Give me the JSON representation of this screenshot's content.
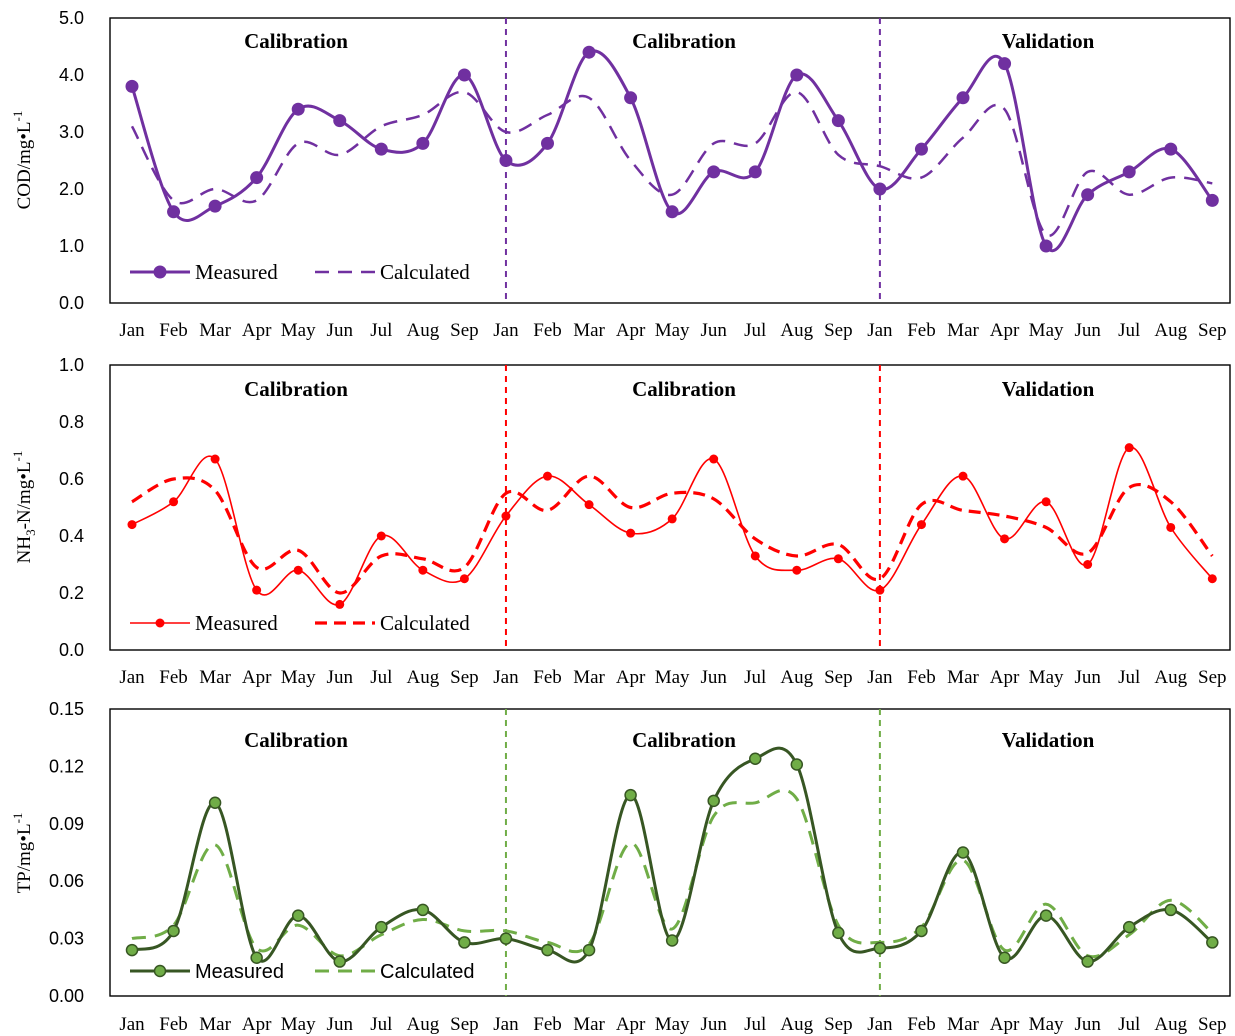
{
  "chart_data": [
    {
      "type": "line",
      "ylabel": "COD/mg•L-1",
      "ylabel_main": "COD/mg•L",
      "ylabel_sup": "-1",
      "ylim": [
        0,
        5
      ],
      "yticks": [
        "0.0",
        "1.0",
        "2.0",
        "3.0",
        "4.0",
        "5.0"
      ],
      "categories": [
        "Jan",
        "Feb",
        "Mar",
        "Apr",
        "May",
        "Jun",
        "Jul",
        "Aug",
        "Sep",
        "Jan",
        "Feb",
        "Mar",
        "Apr",
        "May",
        "Jun",
        "Jul",
        "Aug",
        "Sep",
        "Jan",
        "Feb",
        "Mar",
        "Apr",
        "May",
        "Jun",
        "Jul",
        "Aug",
        "Sep"
      ],
      "periods": [
        "Calibration",
        "Calibration",
        "Validation"
      ],
      "legend_position": "bottom-left",
      "grid": false,
      "colors": {
        "measured": "#7030A0",
        "calculated": "#7030A0"
      },
      "series": [
        {
          "name": "Measured",
          "values": [
            3.8,
            1.6,
            1.7,
            2.2,
            3.4,
            3.2,
            2.7,
            2.8,
            4.0,
            2.5,
            2.8,
            4.4,
            3.6,
            1.6,
            2.3,
            2.3,
            4.0,
            3.2,
            2.0,
            2.7,
            3.6,
            4.2,
            1.0,
            1.9,
            2.3,
            2.7,
            1.8
          ]
        },
        {
          "name": "Calculated",
          "values": [
            3.1,
            1.8,
            2.0,
            1.8,
            2.8,
            2.6,
            3.1,
            3.3,
            3.7,
            3.0,
            3.3,
            3.6,
            2.5,
            1.9,
            2.8,
            2.8,
            3.7,
            2.6,
            2.4,
            2.2,
            2.9,
            3.4,
            1.2,
            2.3,
            1.9,
            2.2,
            2.1
          ]
        }
      ]
    },
    {
      "type": "line",
      "ylabel": "NH3-N/mg•L-1",
      "ylabel_main": "NH",
      "ylabel_sub": "3",
      "ylabel_rest": "-N/mg•L",
      "ylabel_sup": "-1",
      "ylim": [
        0,
        1
      ],
      "yticks": [
        "0.0",
        "0.2",
        "0.4",
        "0.6",
        "0.8",
        "1.0"
      ],
      "categories": [
        "Jan",
        "Feb",
        "Mar",
        "Apr",
        "May",
        "Jun",
        "Jul",
        "Aug",
        "Sep",
        "Jan",
        "Feb",
        "Mar",
        "Apr",
        "May",
        "Jun",
        "Jul",
        "Aug",
        "Sep",
        "Jan",
        "Feb",
        "Mar",
        "Apr",
        "May",
        "Jun",
        "Jul",
        "Aug",
        "Sep"
      ],
      "periods": [
        "Calibration",
        "Calibration",
        "Validation"
      ],
      "legend_position": "bottom-left",
      "grid": false,
      "colors": {
        "measured": "#FF0000",
        "calculated": "#FF0000"
      },
      "series": [
        {
          "name": "Measured",
          "values": [
            0.44,
            0.52,
            0.67,
            0.21,
            0.28,
            0.16,
            0.4,
            0.28,
            0.25,
            0.47,
            0.61,
            0.51,
            0.41,
            0.46,
            0.67,
            0.33,
            0.28,
            0.32,
            0.21,
            0.44,
            0.61,
            0.39,
            0.52,
            0.3,
            0.71,
            0.43,
            0.25
          ]
        },
        {
          "name": "Calculated",
          "values": [
            0.52,
            0.6,
            0.56,
            0.29,
            0.35,
            0.2,
            0.33,
            0.32,
            0.29,
            0.55,
            0.49,
            0.61,
            0.5,
            0.55,
            0.53,
            0.39,
            0.33,
            0.37,
            0.25,
            0.51,
            0.49,
            0.47,
            0.43,
            0.34,
            0.57,
            0.52,
            0.33
          ]
        }
      ]
    },
    {
      "type": "line",
      "ylabel": "TP/mg•L-1",
      "ylabel_main": "TP/mg•L",
      "ylabel_sup": "-1",
      "ylim": [
        0,
        0.15
      ],
      "yticks": [
        "0.00",
        "0.03",
        "0.06",
        "0.09",
        "0.12",
        "0.15"
      ],
      "categories": [
        "Jan",
        "Feb",
        "Mar",
        "Apr",
        "May",
        "Jun",
        "Jul",
        "Aug",
        "Sep",
        "Jan",
        "Feb",
        "Mar",
        "Apr",
        "May",
        "Jun",
        "Jul",
        "Aug",
        "Sep",
        "Jan",
        "Feb",
        "Mar",
        "Apr",
        "May",
        "Jun",
        "Jul",
        "Aug",
        "Sep"
      ],
      "periods": [
        "Calibration",
        "Calibration",
        "Validation"
      ],
      "legend_position": "bottom-left",
      "grid": false,
      "colors": {
        "measured": "#375623",
        "measured_marker": "#70AD47",
        "calculated": "#70AD47"
      },
      "series": [
        {
          "name": "Measured",
          "values": [
            0.024,
            0.034,
            0.101,
            0.02,
            0.042,
            0.018,
            0.036,
            0.045,
            0.028,
            0.03,
            0.024,
            0.024,
            0.105,
            0.029,
            0.102,
            0.124,
            0.121,
            0.033,
            0.025,
            0.034,
            0.075,
            0.02,
            0.042,
            0.018,
            0.036,
            0.045,
            0.028
          ]
        },
        {
          "name": "Calculated",
          "values": [
            0.03,
            0.037,
            0.079,
            0.025,
            0.037,
            0.021,
            0.032,
            0.04,
            0.034,
            0.034,
            0.028,
            0.027,
            0.08,
            0.035,
            0.094,
            0.101,
            0.103,
            0.037,
            0.028,
            0.036,
            0.071,
            0.024,
            0.048,
            0.021,
            0.032,
            0.05,
            0.033
          ]
        }
      ]
    }
  ]
}
